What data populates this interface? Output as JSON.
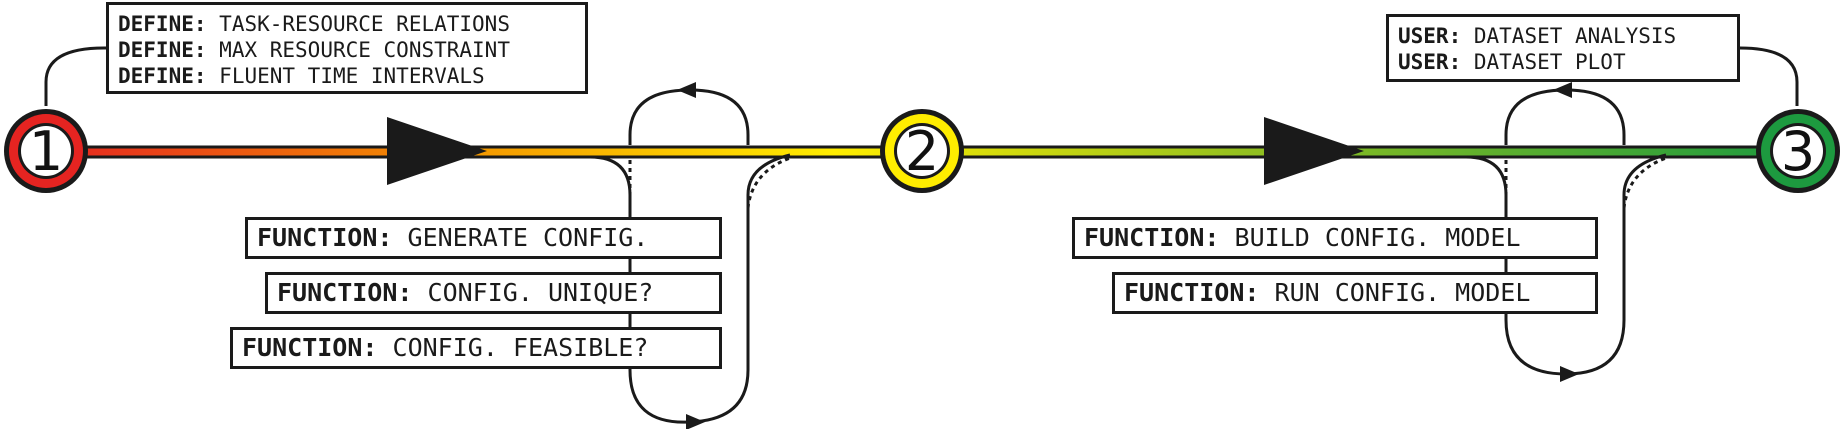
{
  "colors": {
    "red": "#e52421",
    "orange": "#f39200",
    "yellow": "#ffed00",
    "green": "#1d9a3f",
    "ink": "#1a1a1a"
  },
  "nodes": [
    {
      "label": "1",
      "color": "#e52421"
    },
    {
      "label": "2",
      "color": "#ffed00"
    },
    {
      "label": "3",
      "color": "#1d9a3f"
    }
  ],
  "define_box": {
    "lines": [
      {
        "keyword": "DEFINE:",
        "text": "TASK-RESOURCE RELATIONS"
      },
      {
        "keyword": "DEFINE:",
        "text": "MAX RESOURCE CONSTRAINT"
      },
      {
        "keyword": "DEFINE:",
        "text": "FLUENT TIME INTERVALS"
      }
    ]
  },
  "user_box": {
    "lines": [
      {
        "keyword": "USER:",
        "text": "DATASET ANALYSIS"
      },
      {
        "keyword": "USER:",
        "text": "DATASET PLOT"
      }
    ]
  },
  "stage1_functions": [
    {
      "keyword": "FUNCTION:",
      "text": "GENERATE CONFIG."
    },
    {
      "keyword": "FUNCTION:",
      "text": "CONFIG. UNIQUE?"
    },
    {
      "keyword": "FUNCTION:",
      "text": "CONFIG. FEASIBLE?"
    }
  ],
  "stage2_functions": [
    {
      "keyword": "FUNCTION:",
      "text": "BUILD CONFIG. MODEL"
    },
    {
      "keyword": "FUNCTION:",
      "text": "RUN CONFIG. MODEL"
    }
  ]
}
